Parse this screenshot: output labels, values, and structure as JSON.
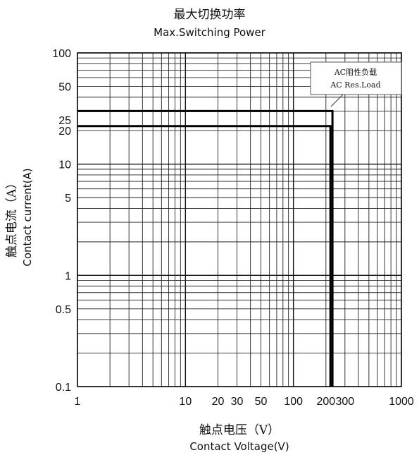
{
  "chart_data": {
    "type": "line",
    "title": "最大切换功率",
    "subtitle": "Max.Switching Power",
    "xlabel_cn": "触点电压（V）",
    "xlabel": "Contact Voltage(V)",
    "ylabel_cn": "触点电流（A）",
    "ylabel": "Contact current(A)",
    "xscale": "log",
    "yscale": "log",
    "xlim": [
      1,
      1000
    ],
    "ylim": [
      0.1,
      100
    ],
    "grid": true,
    "x_ticks": [
      1,
      10,
      20,
      30,
      50,
      100,
      200,
      300,
      1000
    ],
    "x_tick_labels": [
      "1",
      "10",
      "20",
      "30",
      "50",
      "100",
      "200",
      "300",
      "1000"
    ],
    "y_ticks": [
      0.1,
      0.5,
      1,
      5,
      10,
      20,
      25,
      50,
      100
    ],
    "y_tick_labels": [
      "0.1",
      "0.5",
      "1",
      "5",
      "10",
      "20",
      "25",
      "50",
      "100"
    ],
    "legend": [
      "AC阻性负载",
      "AC Res.Load"
    ],
    "legend_position": "top-right",
    "series": [
      {
        "name": "AC Res.Load",
        "color": "#000000",
        "segments": [
          {
            "x": [
              1,
              230,
              230
            ],
            "y": [
              30,
              30,
              0.1
            ]
          },
          {
            "x": [
              1,
              220,
              220
            ],
            "y": [
              22,
              22,
              0.1
            ]
          }
        ]
      }
    ]
  }
}
